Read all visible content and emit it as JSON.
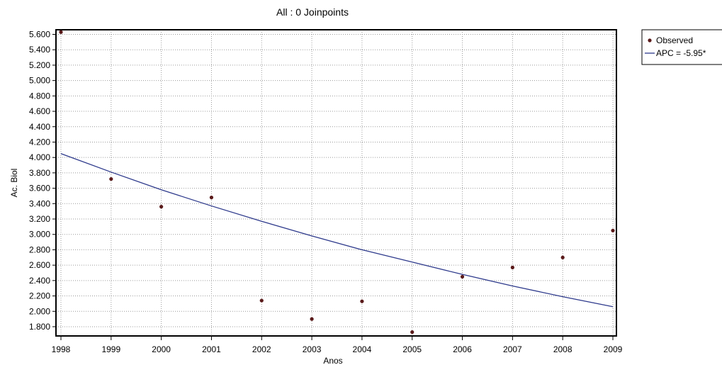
{
  "chart_data": {
    "type": "scatter",
    "title": "All : 0 Joinpoints",
    "xlabel": "Anos",
    "ylabel": "Ac. Biol",
    "x_ticks": [
      "1998",
      "1999",
      "2000",
      "2001",
      "2002",
      "2003",
      "2004",
      "2005",
      "2006",
      "2007",
      "2008",
      "2009"
    ],
    "y_ticks": [
      "1.800",
      "2.000",
      "2.200",
      "2.400",
      "2.600",
      "2.800",
      "3.000",
      "3.200",
      "3.400",
      "3.600",
      "3.800",
      "4.000",
      "4.200",
      "4.400",
      "4.600",
      "4.800",
      "5.000",
      "5.200",
      "5.400",
      "5.600"
    ],
    "xlim": [
      1998,
      2009
    ],
    "ylim": [
      1.68,
      5.66
    ],
    "grid": true,
    "legend_position": "top-right outside",
    "series": [
      {
        "name": "Observed",
        "kind": "points",
        "color": "#5a1a1a",
        "x": [
          1998,
          1999,
          2000,
          2001,
          2002,
          2003,
          2004,
          2005,
          2006,
          2007,
          2008,
          2009
        ],
        "y": [
          5.63,
          3.72,
          3.36,
          3.48,
          2.14,
          1.9,
          2.13,
          1.73,
          2.45,
          2.57,
          2.7,
          3.05
        ]
      },
      {
        "name": "APC = -5.95*",
        "kind": "line",
        "color": "#2e3a8c",
        "x": [
          1998,
          1999,
          2000,
          2001,
          2002,
          2003,
          2004,
          2005,
          2006,
          2007,
          2008,
          2009
        ],
        "y": [
          4.05,
          3.81,
          3.58,
          3.37,
          3.17,
          2.98,
          2.8,
          2.64,
          2.48,
          2.33,
          2.19,
          2.06
        ]
      }
    ]
  }
}
